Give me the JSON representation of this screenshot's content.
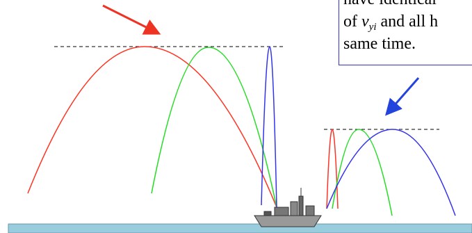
{
  "callout": {
    "line1": "have identical",
    "line2": {
      "before": "of ",
      "symbol": "v",
      "subscript": "yi",
      "after": " and all h"
    },
    "line3": "same time."
  }
}
